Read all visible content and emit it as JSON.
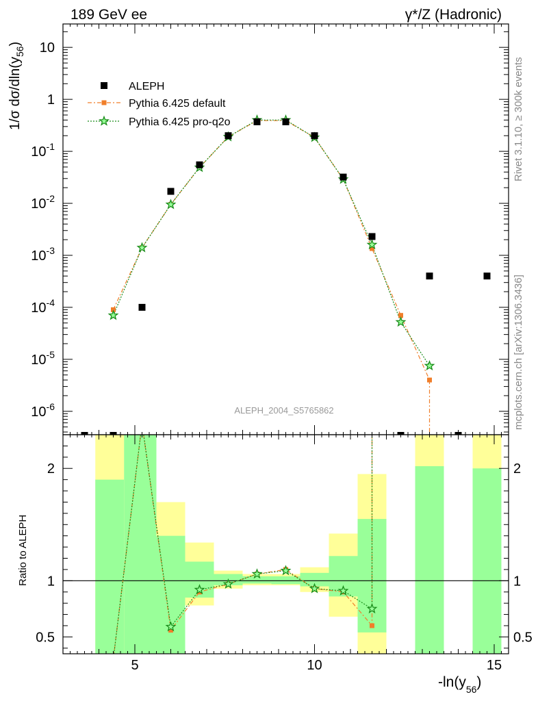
{
  "header": {
    "left": "189 GeV ee",
    "right": "γ*/Z (Hadronic)"
  },
  "side_labels": {
    "rivet": "Rivet 3.1.10, ≥ 300k events",
    "mcplots": "mcplots.cern.ch [arXiv:1306.3436]"
  },
  "colors": {
    "aleph": "#000000",
    "pythia_default": "#f07e2a",
    "pythia_proq2o": "#1a8c1a",
    "band_green": "#99ff99",
    "band_yellow": "#ffff99"
  },
  "chart_data": [
    {
      "type": "scatter",
      "panel": "main",
      "yscale": "log",
      "ylabel": "1/σ  dσ/dln(y56)",
      "ylabel_parts": {
        "prefix": "1/σ  dσ/dln(y",
        "sub": "56",
        "suffix": ")"
      },
      "watermark": "ALEPH_2004_S5765862",
      "xlim": [
        3,
        15.4
      ],
      "ylim_exp": [
        -6.45,
        1.45
      ],
      "y_tick_labels": [
        {
          "value": 10,
          "label": "10"
        },
        {
          "value": 1,
          "label": "1"
        },
        {
          "value": 0.1,
          "base": "10",
          "exp": "-1"
        },
        {
          "value": 0.01,
          "base": "10",
          "exp": "-2"
        },
        {
          "value": 0.001,
          "base": "10",
          "exp": "-3"
        },
        {
          "value": 0.0001,
          "base": "10",
          "exp": "-4"
        },
        {
          "value": 1e-05,
          "base": "10",
          "exp": "-5"
        },
        {
          "value": 1e-06,
          "base": "10",
          "exp": "-6"
        }
      ],
      "legend_position": "top-left",
      "series": [
        {
          "name": "ALEPH",
          "style": "square",
          "x": [
            3.6,
            4.4,
            5.2,
            6.0,
            6.8,
            7.6,
            8.4,
            9.2,
            10.0,
            10.8,
            11.6,
            12.4,
            13.2,
            14.0,
            14.8
          ],
          "y": [
            null,
            null,
            0.0001,
            0.017,
            0.055,
            0.2,
            0.37,
            0.37,
            0.2,
            0.032,
            0.0023,
            null,
            0.0004,
            null,
            0.0004
          ],
          "below_axis_x": [
            3.6,
            4.4,
            12.4,
            14.0
          ]
        },
        {
          "name": "Pythia 6.425 default",
          "style": "dashdot",
          "x": [
            4.4,
            5.2,
            6.0,
            6.8,
            7.6,
            8.4,
            9.2,
            10.0,
            10.8,
            11.6,
            12.4,
            13.2
          ],
          "y": [
            9e-05,
            0.0014,
            0.0095,
            0.049,
            0.19,
            0.39,
            0.39,
            0.185,
            0.029,
            0.00135,
            7e-05,
            4e-06
          ],
          "drop_to_axis_from_x": 13.2
        },
        {
          "name": "Pythia 6.425 pro-q2o",
          "style": "dotted-star",
          "x": [
            4.4,
            5.2,
            6.0,
            6.8,
            7.6,
            8.4,
            9.2,
            10.0,
            10.8,
            11.6,
            12.4,
            13.2
          ],
          "y": [
            7e-05,
            0.0014,
            0.0095,
            0.049,
            0.19,
            0.4,
            0.4,
            0.185,
            0.029,
            0.0016,
            5.2e-05,
            7.5e-06
          ]
        }
      ]
    },
    {
      "type": "line",
      "panel": "ratio",
      "ylabel": "Ratio to ALEPH",
      "xlabel": "-ln(y56)",
      "xlabel_parts": {
        "prefix": "-ln(y",
        "sub": "56",
        "suffix": ")"
      },
      "xlim": [
        3,
        15.4
      ],
      "ylim": [
        0.35,
        2.3
      ],
      "x_ticks": [
        5,
        10,
        15
      ],
      "y_ticks": [
        0.5,
        1,
        2
      ],
      "reference_line": 1,
      "bands": [
        {
          "x0": 3.9,
          "x1": 4.7,
          "stat_lo": 0.3,
          "stat_hi": 1.9,
          "tot_lo": 0.3,
          "tot_hi": 2.3
        },
        {
          "x0": 4.7,
          "x1": 5.6,
          "stat_lo": 0.3,
          "stat_hi": 2.3,
          "tot_lo": 0.3,
          "tot_hi": 2.3
        },
        {
          "x0": 5.6,
          "x1": 6.4,
          "stat_lo": 0.3,
          "stat_hi": 1.4,
          "tot_lo": 0.3,
          "tot_hi": 1.7
        },
        {
          "x0": 6.4,
          "x1": 7.2,
          "stat_lo": 0.85,
          "stat_hi": 1.17,
          "tot_lo": 0.78,
          "tot_hi": 1.34
        },
        {
          "x0": 7.2,
          "x1": 8.0,
          "stat_lo": 0.96,
          "stat_hi": 1.06,
          "tot_lo": 0.93,
          "tot_hi": 1.09
        },
        {
          "x0": 8.0,
          "x1": 8.8,
          "stat_lo": 0.975,
          "stat_hi": 1.04,
          "tot_lo": 0.96,
          "tot_hi": 1.06
        },
        {
          "x0": 8.8,
          "x1": 9.6,
          "stat_lo": 0.97,
          "stat_hi": 1.04,
          "tot_lo": 0.96,
          "tot_hi": 1.06
        },
        {
          "x0": 9.6,
          "x1": 10.4,
          "stat_lo": 0.95,
          "stat_hi": 1.07,
          "tot_lo": 0.9,
          "tot_hi": 1.12
        },
        {
          "x0": 10.4,
          "x1": 11.2,
          "stat_lo": 0.86,
          "stat_hi": 1.22,
          "tot_lo": 0.68,
          "tot_hi": 1.42
        },
        {
          "x0": 11.2,
          "x1": 12.0,
          "stat_lo": 0.54,
          "stat_hi": 1.55,
          "tot_lo": 0.3,
          "tot_hi": 1.95
        },
        {
          "x0": 12.8,
          "x1": 13.6,
          "stat_lo": 0.3,
          "stat_hi": 2.02,
          "tot_lo": 0.3,
          "tot_hi": 2.3
        },
        {
          "x0": 14.4,
          "x1": 15.2,
          "stat_lo": 0.3,
          "stat_hi": 2.0,
          "tot_lo": 0.3,
          "tot_hi": 2.3
        }
      ],
      "series": [
        {
          "name": "Pythia 6.425 default",
          "x": [
            4.4,
            5.2,
            6.0,
            6.8,
            7.6,
            8.4,
            9.2,
            10.0,
            10.8,
            11.6
          ],
          "y": [
            0.3,
            2.4,
            0.56,
            0.9,
            0.97,
            1.06,
            1.1,
            0.93,
            0.9,
            0.6
          ],
          "markers_visible": [
            false,
            false,
            true,
            true,
            true,
            true,
            true,
            true,
            true,
            true
          ],
          "after_last": "up"
        },
        {
          "name": "Pythia 6.425 pro-q2o",
          "x": [
            4.4,
            5.2,
            6.0,
            6.8,
            7.6,
            8.4,
            9.2,
            10.0,
            10.8,
            11.6
          ],
          "y": [
            0.3,
            2.4,
            0.59,
            0.92,
            0.97,
            1.06,
            1.09,
            0.93,
            0.91,
            0.75
          ],
          "markers_visible": [
            false,
            false,
            true,
            true,
            true,
            true,
            true,
            true,
            true,
            true
          ],
          "after_last": "up"
        }
      ]
    }
  ]
}
